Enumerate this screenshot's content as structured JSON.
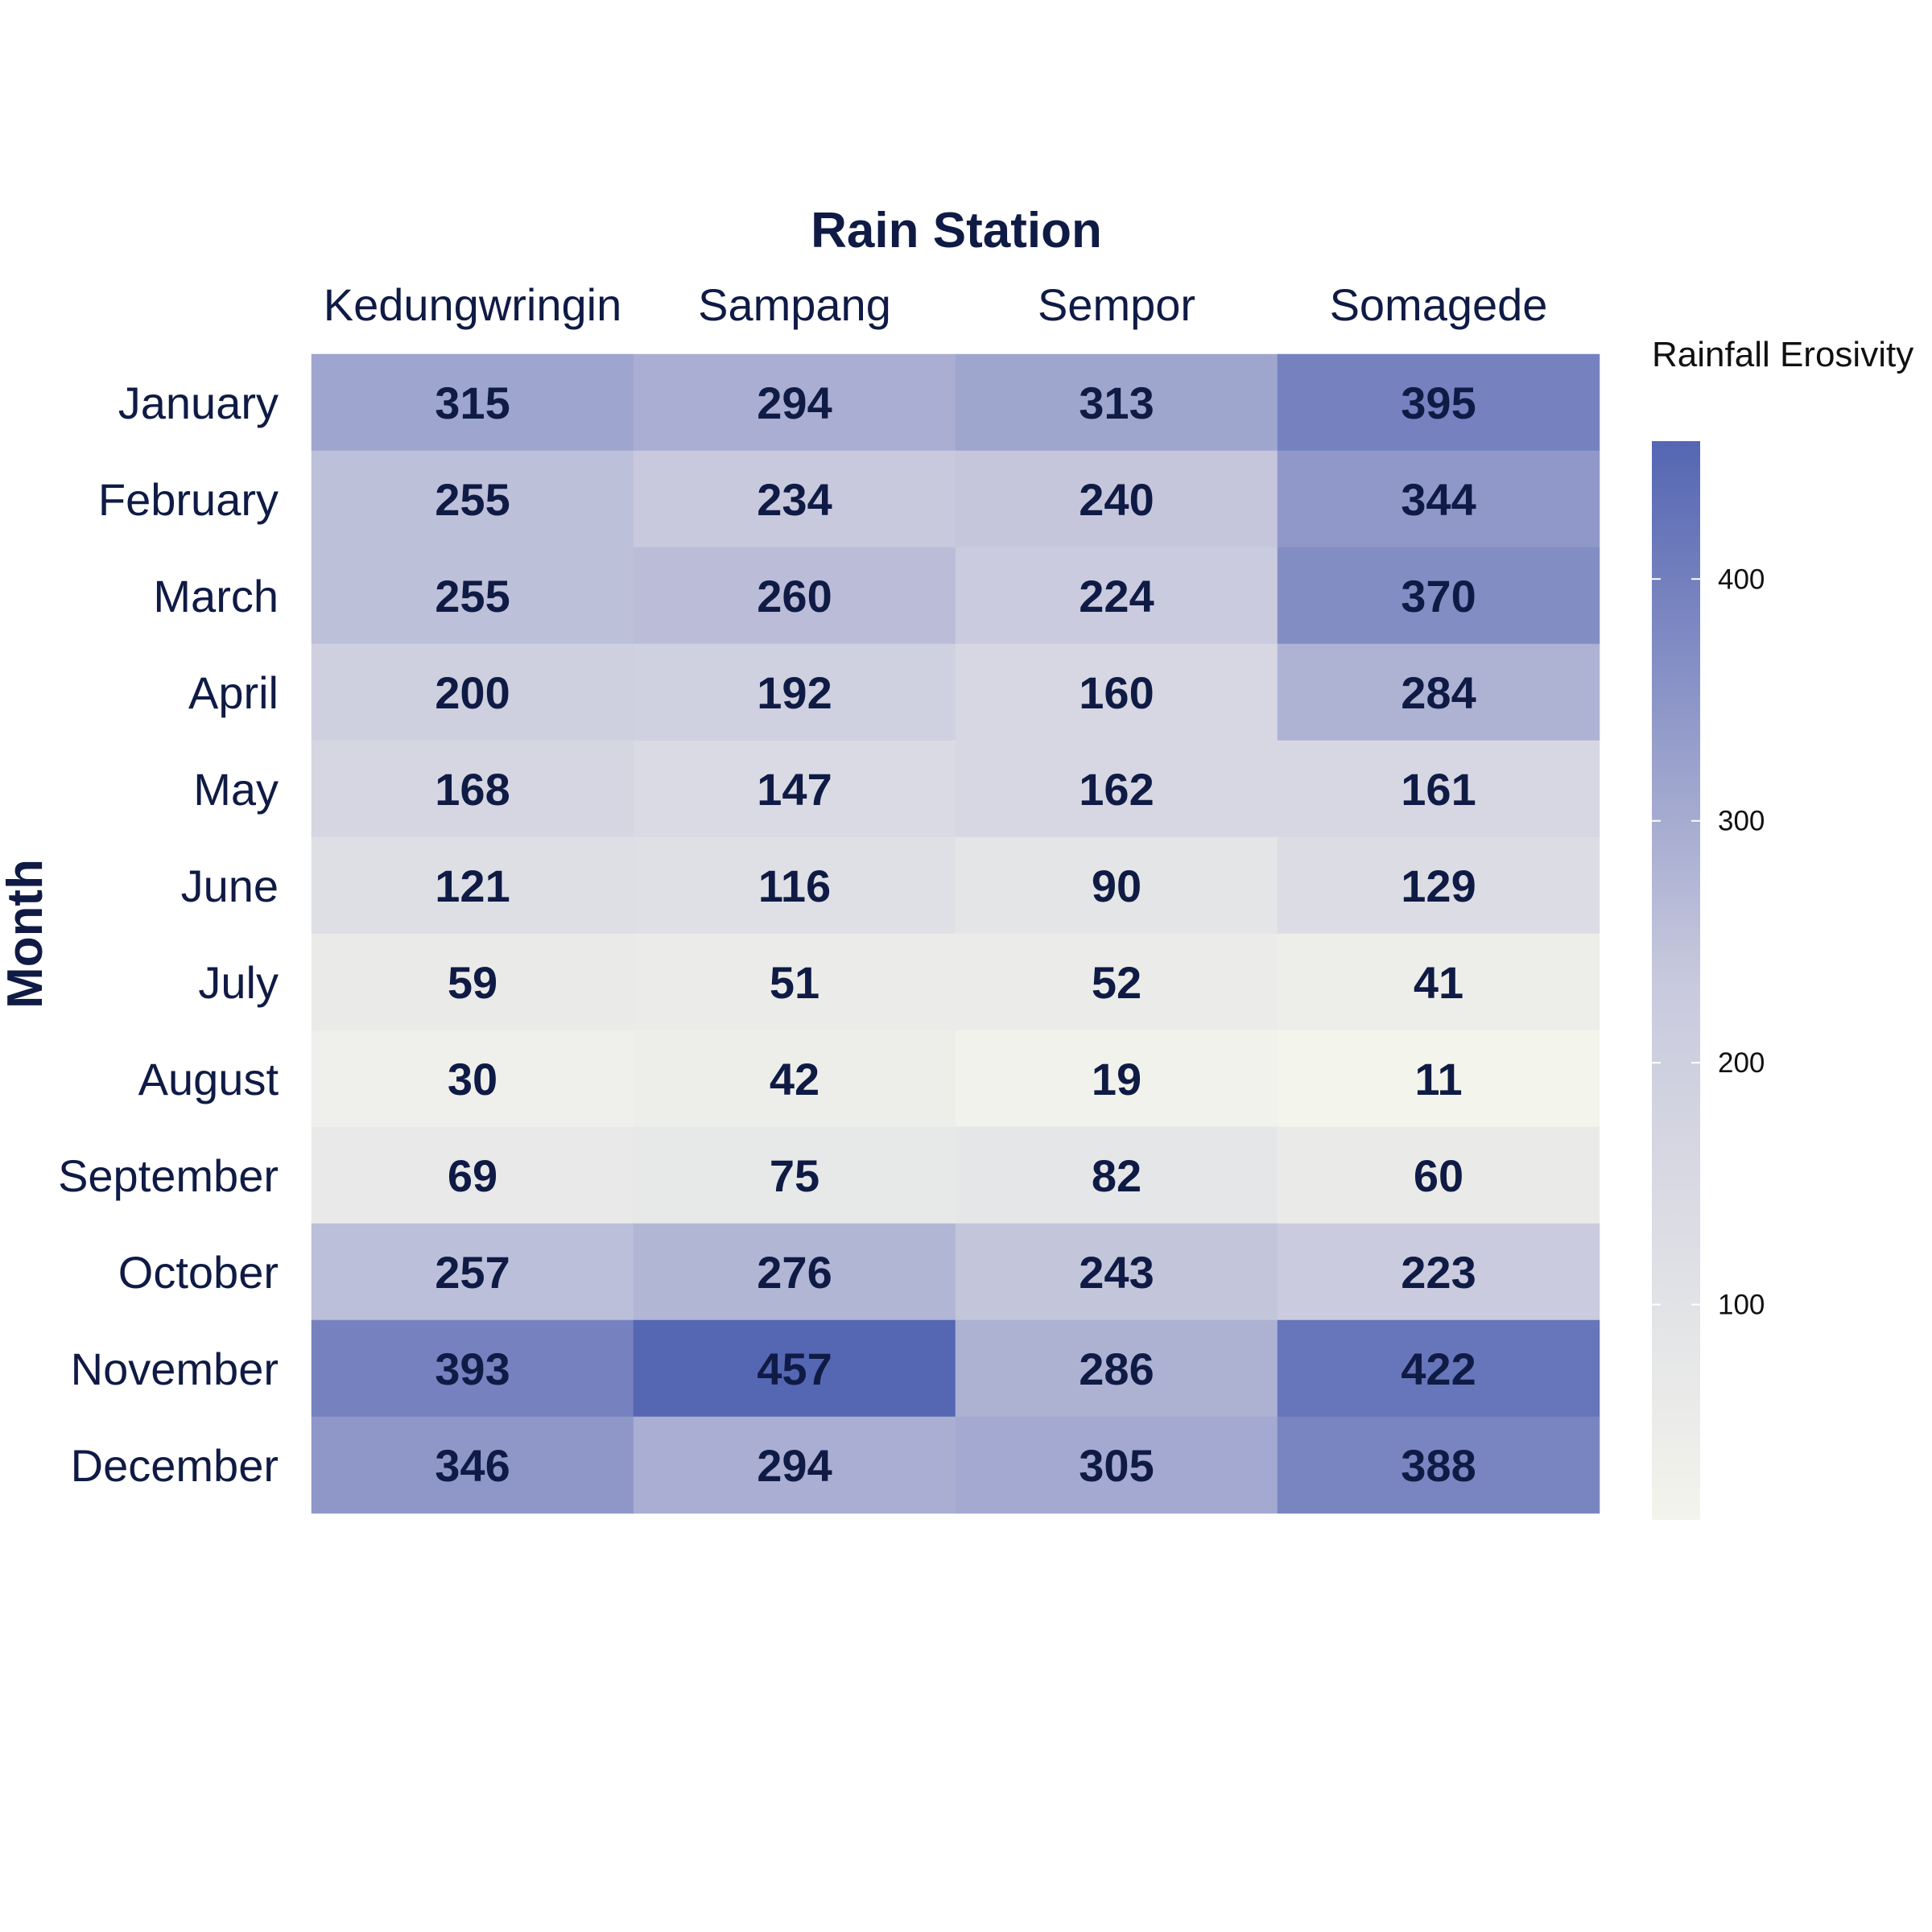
{
  "chart_data": {
    "type": "heatmap",
    "title": "",
    "xlabel": "Rain Station",
    "ylabel": "Month",
    "x_categories": [
      "Kedungwringin",
      "Sampang",
      "Sempor",
      "Somagede"
    ],
    "y_categories": [
      "January",
      "February",
      "March",
      "April",
      "May",
      "June",
      "July",
      "August",
      "September",
      "October",
      "November",
      "December"
    ],
    "values": [
      [
        315,
        294,
        313,
        395
      ],
      [
        255,
        234,
        240,
        344
      ],
      [
        255,
        260,
        224,
        370
      ],
      [
        200,
        192,
        160,
        284
      ],
      [
        168,
        147,
        162,
        161
      ],
      [
        121,
        116,
        90,
        129
      ],
      [
        59,
        51,
        52,
        41
      ],
      [
        30,
        42,
        19,
        11
      ],
      [
        69,
        75,
        82,
        60
      ],
      [
        257,
        276,
        243,
        223
      ],
      [
        393,
        457,
        286,
        422
      ],
      [
        346,
        294,
        305,
        388
      ]
    ],
    "legend": {
      "title": "Rainfall Erosivity",
      "ticks": [
        100,
        200,
        300,
        400
      ],
      "range": [
        11,
        457
      ],
      "placement": "right"
    },
    "colors": {
      "low": "#f3f4ec",
      "mid": "#c8c9dd",
      "high": "#5566b3",
      "text": "#0f1b45"
    }
  }
}
